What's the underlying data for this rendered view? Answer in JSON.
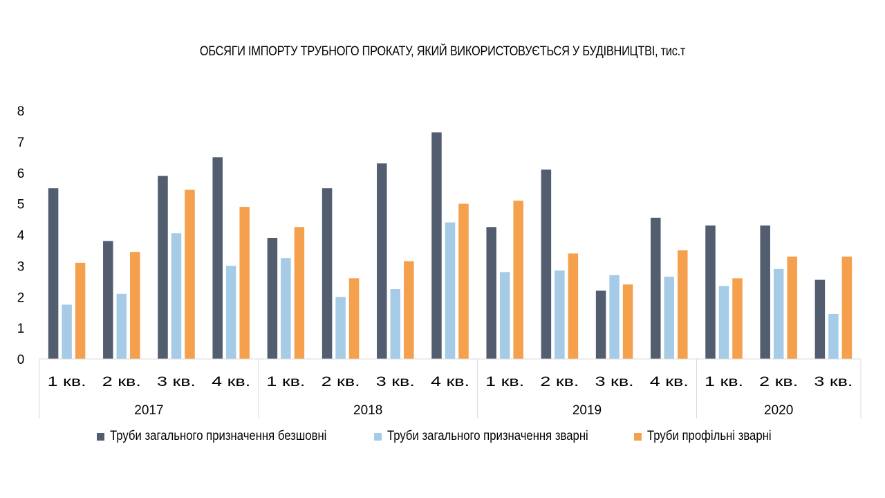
{
  "chart_data": {
    "type": "bar",
    "title": "ОБСЯГИ ІМПОРТУ ТРУБНОГО ПРОКАТУ, ЯКИЙ ВИКОРИСТОВУЄТЬСЯ У БУДІВНИЦТВІ, тис.т",
    "xlabel": "",
    "ylabel": "",
    "ylim": [
      0,
      8
    ],
    "yticks": [
      "0",
      "1",
      "2",
      "3",
      "4",
      "5",
      "6",
      "7",
      "8"
    ],
    "grid": false,
    "legend_position": "bottom",
    "categories": [
      "1 кв.",
      "2 кв.",
      "3 кв.",
      "4 кв.",
      "1 кв.",
      "2 кв.",
      "3 кв.",
      "4 кв.",
      "1 кв.",
      "2 кв.",
      "3 кв.",
      "4 кв.",
      "1 кв.",
      "2 кв.",
      "3 кв."
    ],
    "groups": [
      {
        "label": "2017",
        "count": 4
      },
      {
        "label": "2018",
        "count": 4
      },
      {
        "label": "2019",
        "count": 4
      },
      {
        "label": "2020",
        "count": 3
      }
    ],
    "series": [
      {
        "name": "Труби загального призначення безшовні",
        "color": "#535d70",
        "values": [
          5.5,
          3.8,
          5.9,
          6.5,
          3.9,
          5.5,
          6.3,
          7.3,
          4.25,
          6.1,
          2.2,
          4.55,
          4.3,
          4.3,
          2.55
        ]
      },
      {
        "name": "Труби загального призначення зварні",
        "color": "#a5cbe7",
        "values": [
          1.75,
          2.1,
          4.05,
          3.0,
          3.25,
          2.0,
          2.25,
          4.4,
          2.8,
          2.85,
          2.7,
          2.65,
          2.35,
          2.9,
          1.45
        ]
      },
      {
        "name": "Труби профільні зварні",
        "color": "#f4a04d",
        "values": [
          3.1,
          3.45,
          5.45,
          4.9,
          4.25,
          2.6,
          3.15,
          5.0,
          5.1,
          3.4,
          2.4,
          3.5,
          2.6,
          3.3,
          3.3
        ]
      }
    ]
  }
}
